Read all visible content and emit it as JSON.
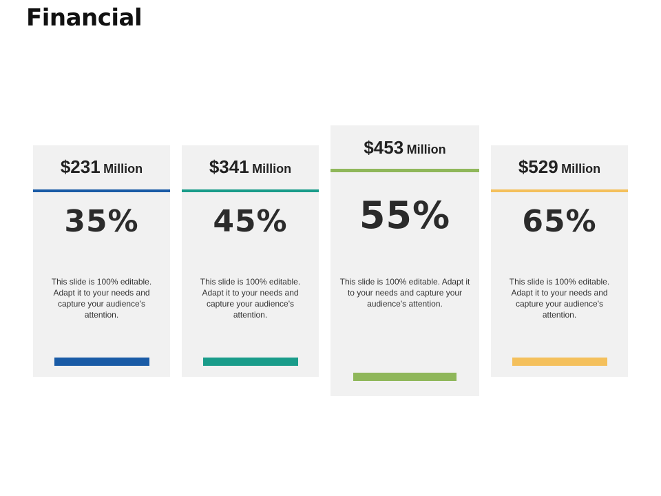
{
  "title": "Financial",
  "cards": [
    {
      "amount": "$231",
      "unit": "Million",
      "percent": "35%",
      "description": "This slide is 100% editable. Adapt it to your needs and capture your audience's attention.",
      "color": "#1a5ba6"
    },
    {
      "amount": "$341",
      "unit": "Million",
      "percent": "45%",
      "description": "This slide is 100% editable. Adapt it to your needs and capture your audience's attention.",
      "color": "#1a9c8a"
    },
    {
      "amount": "$453",
      "unit": "Million",
      "percent": "55%",
      "description": "This slide is 100% editable. Adapt it to your needs and capture your audience's attention.",
      "color": "#8fb75a"
    },
    {
      "amount": "$529",
      "unit": "Million",
      "percent": "65%",
      "description": "This slide is 100% editable. Adapt it to your needs and capture your audience's attention.",
      "color": "#f4c05c"
    }
  ]
}
